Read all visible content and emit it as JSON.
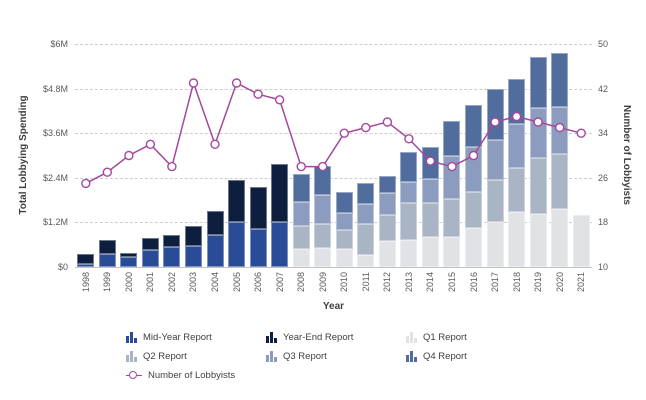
{
  "axes": {
    "left": {
      "title": "Total Lobbying Spending",
      "ticks": [
        "$0",
        "$1.2M",
        "$2.4M",
        "$3.6M",
        "$4.8M",
        "$6M"
      ],
      "tick_values": [
        0,
        1.2,
        2.4,
        3.6,
        4.8,
        6
      ]
    },
    "right": {
      "title": "Number of Lobbyists",
      "ticks": [
        "10",
        "18",
        "26",
        "34",
        "42",
        "50"
      ],
      "tick_values": [
        10,
        18,
        26,
        34,
        42,
        50
      ]
    },
    "x": {
      "title": "Year"
    }
  },
  "chart_data": {
    "type": "bar",
    "subtype": "stacked-bar-with-line",
    "grid": "horizontal-dashed",
    "legend_position": "bottom",
    "ylim_left": [
      0,
      6
    ],
    "ylim_right": [
      10,
      50
    ],
    "ylabel_left": "Total Lobbying Spending",
    "ylabel_right": "Number of Lobbyists",
    "xlabel": "Year",
    "categories": [
      "1998",
      "1999",
      "2000",
      "2001",
      "2002",
      "2003",
      "2004",
      "2005",
      "2006",
      "2007",
      "2008",
      "2009",
      "2010",
      "2011",
      "2012",
      "2013",
      "2014",
      "2015",
      "2016",
      "2017",
      "2018",
      "2019",
      "2020",
      "2021"
    ],
    "series": [
      {
        "name": "Mid-Year Report",
        "color": "#2a4b96",
        "unit": "$M",
        "values": [
          0.08,
          0.35,
          0.27,
          0.45,
          0.53,
          0.57,
          0.85,
          1.2,
          1.01,
          1.22,
          null,
          null,
          null,
          null,
          null,
          null,
          null,
          null,
          null,
          null,
          null,
          null,
          null,
          null
        ]
      },
      {
        "name": "Year-End Report",
        "color": "#0e1e3e",
        "unit": "$M",
        "values": [
          0.27,
          0.37,
          0.1,
          0.32,
          0.34,
          0.54,
          0.65,
          1.15,
          1.15,
          1.54,
          null,
          null,
          null,
          null,
          null,
          null,
          null,
          null,
          null,
          null,
          null,
          null,
          null,
          null
        ]
      },
      {
        "name": "Q1 Report",
        "color": "#e0e2e6",
        "unit": "$M",
        "values": [
          null,
          null,
          null,
          null,
          null,
          null,
          null,
          null,
          null,
          null,
          0.48,
          0.5,
          0.49,
          0.32,
          0.7,
          0.73,
          0.8,
          0.82,
          1.04,
          1.2,
          1.47,
          1.43,
          1.56,
          1.4
        ]
      },
      {
        "name": "Q2 Report",
        "color": "#a9b4c4",
        "unit": "$M",
        "values": [
          null,
          null,
          null,
          null,
          null,
          null,
          null,
          null,
          null,
          null,
          0.61,
          0.67,
          0.51,
          0.85,
          0.7,
          0.99,
          0.93,
          1.01,
          0.99,
          1.15,
          1.2,
          1.5,
          1.47,
          null
        ]
      },
      {
        "name": "Q3 Report",
        "color": "#8c9cbe",
        "unit": "$M",
        "values": [
          null,
          null,
          null,
          null,
          null,
          null,
          null,
          null,
          null,
          null,
          0.66,
          0.78,
          0.45,
          0.52,
          0.58,
          0.58,
          0.63,
          1.15,
          1.19,
          1.08,
          1.17,
          1.35,
          1.28,
          null
        ]
      },
      {
        "name": "Q4 Report",
        "color": "#516d9e",
        "unit": "$M",
        "values": [
          null,
          null,
          null,
          null,
          null,
          null,
          null,
          null,
          null,
          null,
          0.76,
          0.76,
          0.58,
          0.58,
          0.47,
          0.79,
          0.86,
          0.96,
          1.14,
          1.37,
          1.23,
          1.38,
          1.45,
          null
        ]
      }
    ],
    "line_series": {
      "name": "Number of Lobbyists",
      "color": "#a5479e",
      "axis": "right",
      "values": [
        25,
        27,
        30,
        32,
        28,
        43,
        32,
        43,
        41,
        40,
        28,
        28,
        34,
        35,
        36,
        33,
        29,
        28,
        30,
        36,
        37,
        36,
        35,
        34
      ]
    }
  },
  "legend": {
    "items": [
      {
        "label": "Mid-Year Report",
        "type": "bar",
        "color": "#2a4b96"
      },
      {
        "label": "Year-End Report",
        "type": "bar",
        "color": "#0e1e3e"
      },
      {
        "label": "Q1 Report",
        "type": "bar",
        "color": "#e0e2e6"
      },
      {
        "label": "Q2 Report",
        "type": "bar",
        "color": "#a9b4c4"
      },
      {
        "label": "Q3 Report",
        "type": "bar",
        "color": "#8c9cbe"
      },
      {
        "label": "Q4 Report",
        "type": "bar",
        "color": "#516d9e"
      },
      {
        "label": "Number of Lobbyists",
        "type": "line",
        "color": "#a5479e"
      }
    ]
  },
  "colors": {
    "grid": "#cdcdcd",
    "axis_line": "#c3c3c3",
    "tick_text": "#58595b",
    "axis_title_text": "#3f4042",
    "legend_text": "#414042",
    "marker_fill": "#ffffff"
  }
}
